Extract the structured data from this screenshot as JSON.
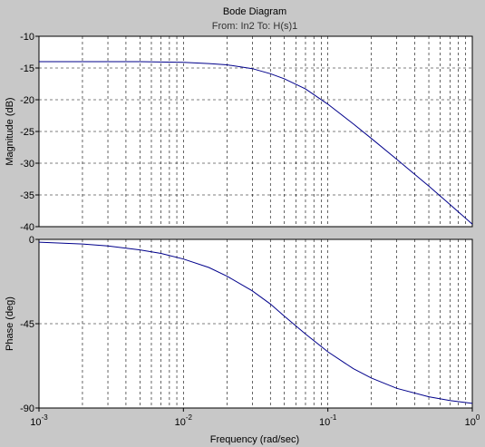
{
  "window": {
    "background": "#c8c8c8"
  },
  "chart_data": {
    "type": "line",
    "title": "Bode Diagram",
    "subtitle": "From: In2  To: H(s)1",
    "xlabel": "Frequency  (rad/sec)",
    "xscale": "log",
    "xlim": [
      0.001,
      1
    ],
    "x_ticks": [
      {
        "base": "10",
        "exp": "-3",
        "value": 0.001
      },
      {
        "base": "10",
        "exp": "-2",
        "value": 0.01
      },
      {
        "base": "10",
        "exp": "-1",
        "value": 0.1
      },
      {
        "base": "10",
        "exp": "0",
        "value": 1
      }
    ],
    "grid": true,
    "line_color": "#00008b",
    "magnitude": {
      "ylabel": "Magnitude (dB)",
      "ylim": [
        -40,
        -10
      ],
      "yticks": [
        "-10",
        "-15",
        "-20",
        "-25",
        "-30",
        "-35",
        "-40"
      ],
      "series": [
        {
          "x": [
            0.001,
            0.002,
            0.003,
            0.005,
            0.007,
            0.01,
            0.015,
            0.02,
            0.03,
            0.04,
            0.05,
            0.07,
            0.1,
            0.15,
            0.2,
            0.3,
            0.5,
            0.7,
            1.0
          ],
          "y": [
            -14.0,
            -14.0,
            -14.0,
            -14.0,
            -14.05,
            -14.1,
            -14.3,
            -14.5,
            -15.1,
            -15.9,
            -16.7,
            -18.3,
            -20.7,
            -23.8,
            -26.1,
            -29.4,
            -33.6,
            -36.5,
            -39.6
          ]
        }
      ]
    },
    "phase": {
      "ylabel": "Phase (deg)",
      "ylim": [
        -90,
        0
      ],
      "yticks": [
        "0",
        "-45",
        "-90"
      ],
      "series": [
        {
          "x": [
            0.001,
            0.002,
            0.003,
            0.005,
            0.007,
            0.01,
            0.015,
            0.02,
            0.03,
            0.04,
            0.05,
            0.07,
            0.1,
            0.15,
            0.2,
            0.3,
            0.5,
            0.7,
            1.0
          ],
          "y": [
            -1.5,
            -2.5,
            -3.5,
            -5.6,
            -7.5,
            -10.5,
            -15.0,
            -19.6,
            -27.5,
            -34.5,
            -41.0,
            -50.5,
            -60.0,
            -69.0,
            -74.0,
            -79.5,
            -84.0,
            -86.0,
            -87.5
          ]
        }
      ]
    }
  }
}
